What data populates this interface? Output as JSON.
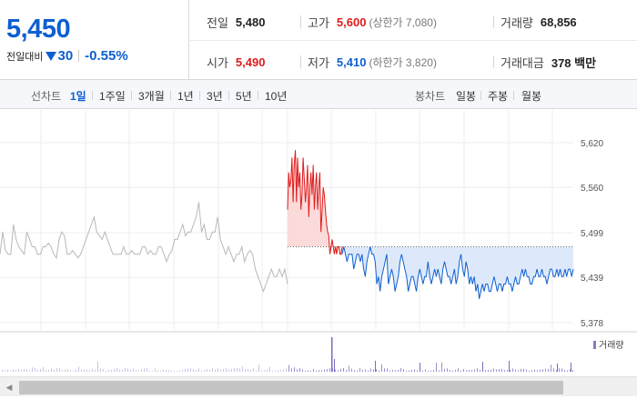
{
  "summary": {
    "price": "5,450",
    "change_label": "전일대비",
    "change": "30",
    "change_pct": "-0.55%",
    "prev_close_label": "전일",
    "prev_close": "5,480",
    "high_label": "고가",
    "high": "5,600",
    "upper_limit": "(상한가 7,080)",
    "volume_label": "거래량",
    "volume": "68,856",
    "open_label": "시가",
    "open": "5,490",
    "low_label": "저가",
    "low": "5,410",
    "lower_limit": "(하한가 3,820)",
    "amount_label": "거래대금",
    "amount": "378 백만"
  },
  "periods": {
    "line_label": "선차트",
    "items": [
      "1일",
      "1주일",
      "3개월",
      "1년",
      "3년",
      "5년",
      "10년"
    ],
    "active": "1일",
    "candle_label": "봉차트",
    "candle_items": [
      "일봉",
      "주봉",
      "월봉"
    ]
  },
  "colors": {
    "up": "#e01b1b",
    "down": "#0d5fd1",
    "prev_day": "#b8b8b8",
    "up_fill": "#fbdada",
    "down_fill": "#dde9fb"
  },
  "chart_data": {
    "type": "line",
    "ylim": [
      5378,
      5620
    ],
    "yticks": [
      "5,620",
      "5,560",
      "5,499",
      "5,439",
      "5,378"
    ],
    "ytick_values": [
      5620,
      5560,
      5499,
      5439,
      5378
    ],
    "reference_value": 5480,
    "volume_legend": "거래량",
    "series": [
      {
        "values": [
          5470,
          5500,
          5475,
          5470,
          5470,
          5510,
          5490,
          5480,
          5475,
          5470,
          5500,
          5490,
          5480,
          5480,
          5470,
          5470,
          5480,
          5480,
          5485,
          5480,
          5470,
          5465,
          5490,
          5500,
          5495,
          5470,
          5470,
          5475,
          5470,
          5465,
          5470,
          5480,
          5490,
          5500,
          5510,
          5520,
          5500,
          5495,
          5490,
          5500,
          5490,
          5480,
          5470,
          5470,
          5470,
          5470,
          5480,
          5470,
          5470,
          5475,
          5470,
          5470,
          5470,
          5480,
          5480,
          5470,
          5475,
          5470,
          5470,
          5480,
          5480,
          5470,
          5460,
          5470,
          5475,
          5490,
          5490,
          5500,
          5510,
          5495,
          5500,
          5500,
          5510,
          5520,
          5540,
          5500,
          5510,
          5490,
          5490,
          5500,
          5500,
          5520,
          5490,
          5480,
          5470,
          5480,
          5470,
          5460,
          5470,
          5470,
          5480,
          5460,
          5470,
          5475,
          5470,
          5450,
          5440,
          5430,
          5420,
          5430,
          5440,
          5450,
          5440,
          5440,
          5450,
          5440,
          5450,
          5430
        ]
      },
      {
        "values": [
          5530,
          5580,
          5560,
          5570,
          5600,
          5540,
          5590,
          5610,
          5540,
          5600,
          5560,
          5580,
          5530,
          5550,
          5600,
          5570,
          5540,
          5560,
          5590,
          5520,
          5560,
          5580,
          5550,
          5590,
          5530,
          5560,
          5580,
          5530,
          5560,
          5580,
          5500,
          5530,
          5560,
          5550,
          5530,
          5510,
          5500,
          5495,
          5470,
          5480,
          5490,
          5480,
          5470,
          5480,
          5470,
          5480,
          5480,
          5470,
          5470,
          5480
        ]
      },
      {
        "values": [
          5470,
          5480,
          5470,
          5460,
          5470,
          5470,
          5470,
          5450,
          5460,
          5470,
          5470,
          5460,
          5470,
          5450,
          5440,
          5460,
          5470,
          5480,
          5470,
          5470,
          5460,
          5430,
          5440,
          5420,
          5440,
          5450,
          5460,
          5470,
          5430,
          5440,
          5450,
          5440,
          5420,
          5430,
          5440,
          5460,
          5470,
          5460,
          5450,
          5440,
          5420,
          5430,
          5440,
          5440,
          5430,
          5420,
          5440,
          5450,
          5440,
          5430,
          5440,
          5440,
          5460,
          5440,
          5430,
          5440,
          5450,
          5440,
          5450,
          5440,
          5430,
          5450,
          5460,
          5450,
          5440,
          5440,
          5430,
          5440,
          5450,
          5430,
          5440,
          5460,
          5470,
          5450,
          5440,
          5460,
          5450,
          5430,
          5440,
          5430,
          5440,
          5420,
          5430,
          5410,
          5420,
          5430,
          5420,
          5430,
          5430,
          5420,
          5420,
          5430,
          5440,
          5430,
          5420,
          5430,
          5430,
          5420,
          5430,
          5430,
          5440,
          5430,
          5430,
          5420,
          5430,
          5440,
          5430,
          5430,
          5440,
          5450,
          5440,
          5450,
          5440,
          5440,
          5430,
          5430,
          5440,
          5440,
          5450,
          5440,
          5440,
          5450,
          5440,
          5440,
          5430,
          5440,
          5450,
          5450,
          5440,
          5440,
          5450,
          5440,
          5450,
          5440,
          5440,
          5450,
          5440,
          5450,
          5450,
          5440,
          5450
        ]
      }
    ]
  }
}
